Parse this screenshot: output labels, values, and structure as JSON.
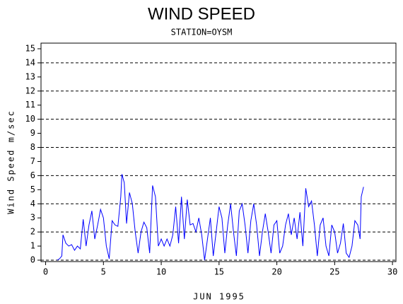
{
  "chart_data": {
    "type": "line",
    "title": "WIND SPEED",
    "subtitle": "STATION=OYSM",
    "x_label": "JUN 1995",
    "y_label": "Wind Speed m/sec",
    "xlim": [
      -0.4,
      30.3
    ],
    "ylim": [
      -0.1,
      15.4
    ],
    "xticks": [
      0,
      5,
      10,
      15,
      20,
      25,
      30
    ],
    "yticks": [
      0,
      1,
      2,
      3,
      4,
      5,
      6,
      7,
      8,
      9,
      10,
      11,
      12,
      13,
      14,
      15
    ],
    "ygrid": [
      0,
      2,
      4,
      6,
      8,
      10,
      12,
      14
    ],
    "series": [
      {
        "name": "Wind Speed",
        "color": "#0000ff",
        "x": [
          1.0,
          1.2,
          1.4,
          1.5,
          1.75,
          2.0,
          2.25,
          2.5,
          2.75,
          3.0,
          3.25,
          3.5,
          3.75,
          4.0,
          4.25,
          4.5,
          4.75,
          5.0,
          5.25,
          5.5,
          5.75,
          6.0,
          6.25,
          6.5,
          6.6,
          6.8,
          7.0,
          7.25,
          7.5,
          7.75,
          8.0,
          8.25,
          8.5,
          8.75,
          9.0,
          9.25,
          9.5,
          9.75,
          10.0,
          10.25,
          10.5,
          10.75,
          11.0,
          11.25,
          11.5,
          11.75,
          12.0,
          12.25,
          12.5,
          12.75,
          13.0,
          13.25,
          13.5,
          13.75,
          14.0,
          14.25,
          14.5,
          14.75,
          15.0,
          15.25,
          15.5,
          15.75,
          16.0,
          16.25,
          16.5,
          16.75,
          17.0,
          17.25,
          17.5,
          17.75,
          18.0,
          18.25,
          18.5,
          18.75,
          19.0,
          19.25,
          19.5,
          19.75,
          20.0,
          20.25,
          20.5,
          20.75,
          21.0,
          21.25,
          21.5,
          21.75,
          22.0,
          22.25,
          22.5,
          22.75,
          23.0,
          23.25,
          23.5,
          23.75,
          24.0,
          24.25,
          24.5,
          24.75,
          25.0,
          25.25,
          25.5,
          25.75,
          26.0,
          26.25,
          26.5,
          26.75,
          27.0,
          27.2,
          27.3,
          27.5
        ],
        "values": [
          0.0,
          0.1,
          0.3,
          1.8,
          1.2,
          1.0,
          1.1,
          0.7,
          1.0,
          0.8,
          2.9,
          1.0,
          2.5,
          3.5,
          1.5,
          2.5,
          3.6,
          3.0,
          1.0,
          0.1,
          2.8,
          2.5,
          2.4,
          4.5,
          6.1,
          5.5,
          2.6,
          4.8,
          4.0,
          2.0,
          0.5,
          2.0,
          2.7,
          2.3,
          0.5,
          5.3,
          4.5,
          1.0,
          1.5,
          1.0,
          1.5,
          1.0,
          1.8,
          3.8,
          1.2,
          4.5,
          1.5,
          4.3,
          2.5,
          2.6,
          2.0,
          3.0,
          1.8,
          0.0,
          1.5,
          3.0,
          0.3,
          2.0,
          3.8,
          3.0,
          0.5,
          2.5,
          4.0,
          2.0,
          0.3,
          3.5,
          4.0,
          2.5,
          0.5,
          2.8,
          4.0,
          2.5,
          0.3,
          2.0,
          3.3,
          2.0,
          0.5,
          2.5,
          2.8,
          0.5,
          1.0,
          2.5,
          3.3,
          1.8,
          3.0,
          1.5,
          3.4,
          1.0,
          5.1,
          3.8,
          4.2,
          2.5,
          0.3,
          2.5,
          3.0,
          1.0,
          0.3,
          2.5,
          2.0,
          0.5,
          1.2,
          2.6,
          0.5,
          0.2,
          1.0,
          2.8,
          2.5,
          1.5,
          4.5,
          5.2
        ]
      }
    ]
  }
}
